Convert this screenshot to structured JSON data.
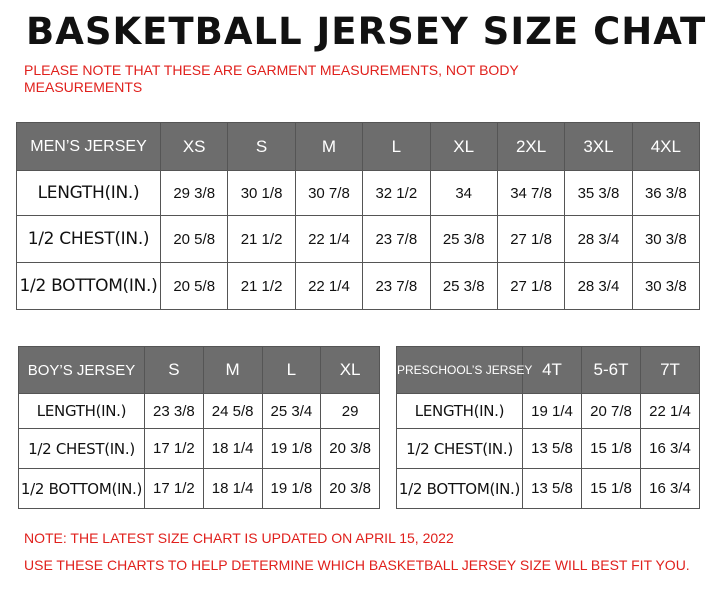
{
  "title": "BASKETBALL JERSEY SIZE CHAT",
  "note": "PLEASE NOTE THAT THESE ARE GARMENT MEASUREMENTS, NOT BODY MEASUREMENTS",
  "footer": [
    "NOTE: THE LATEST SIZE CHART IS UPDATED ON APRIL 15, 2022",
    "USE THESE CHARTS TO HELP DETERMINE WHICH  BASKETBALL JERSEY  SIZE WILL BEST FIT YOU."
  ],
  "colors": {
    "header_bg": "#6d6d6d",
    "note_red": "#e0201c"
  },
  "men": {
    "header": "MEN’S JERSEY",
    "sizes": [
      "XS",
      "S",
      "M",
      "L",
      "XL",
      "2XL",
      "3XL",
      "4XL"
    ],
    "rows": [
      {
        "label": "LENGTH(IN.)",
        "values": [
          "29 3/8",
          "30 1/8",
          "30 7/8",
          "32 1/2",
          "34",
          "34 7/8",
          "35 3/8",
          "36 3/8"
        ]
      },
      {
        "label": "1/2 CHEST(IN.)",
        "values": [
          "20 5/8",
          "21 1/2",
          "22 1/4",
          "23 7/8",
          "25 3/8",
          "27 1/8",
          "28 3/4",
          "30 3/8"
        ]
      },
      {
        "label": "1/2 BOTTOM(IN.)",
        "values": [
          "20 5/8",
          "21 1/2",
          "22 1/4",
          "23 7/8",
          "25 3/8",
          "27 1/8",
          "28 3/4",
          "30 3/8"
        ]
      }
    ]
  },
  "boys": {
    "header": "BOY’S JERSEY",
    "sizes": [
      "S",
      "M",
      "L",
      "XL"
    ],
    "rows": [
      {
        "label": "LENGTH(IN.)",
        "values": [
          "23 3/8",
          "24 5/8",
          "25 3/4",
          "29"
        ]
      },
      {
        "label": "1/2 CHEST(IN.)",
        "values": [
          "17 1/2",
          "18 1/4",
          "19 1/8",
          "20 3/8"
        ]
      },
      {
        "label": "1/2 BOTTOM(IN.)",
        "values": [
          "17 1/2",
          "18 1/4",
          "19 1/8",
          "20 3/8"
        ]
      }
    ]
  },
  "preschool": {
    "header": "PRESCHOOL’S JERSEY",
    "sizes": [
      "4T",
      "5-6T",
      "7T"
    ],
    "rows": [
      {
        "label": "LENGTH(IN.)",
        "values": [
          "19 1/4",
          "20 7/8",
          "22 1/4"
        ]
      },
      {
        "label": "1/2 CHEST(IN.)",
        "values": [
          "13 5/8",
          "15 1/8",
          "16 3/4"
        ]
      },
      {
        "label": "1/2 BOTTOM(IN.)",
        "values": [
          "13 5/8",
          "15 1/8",
          "16 3/4"
        ]
      }
    ]
  }
}
